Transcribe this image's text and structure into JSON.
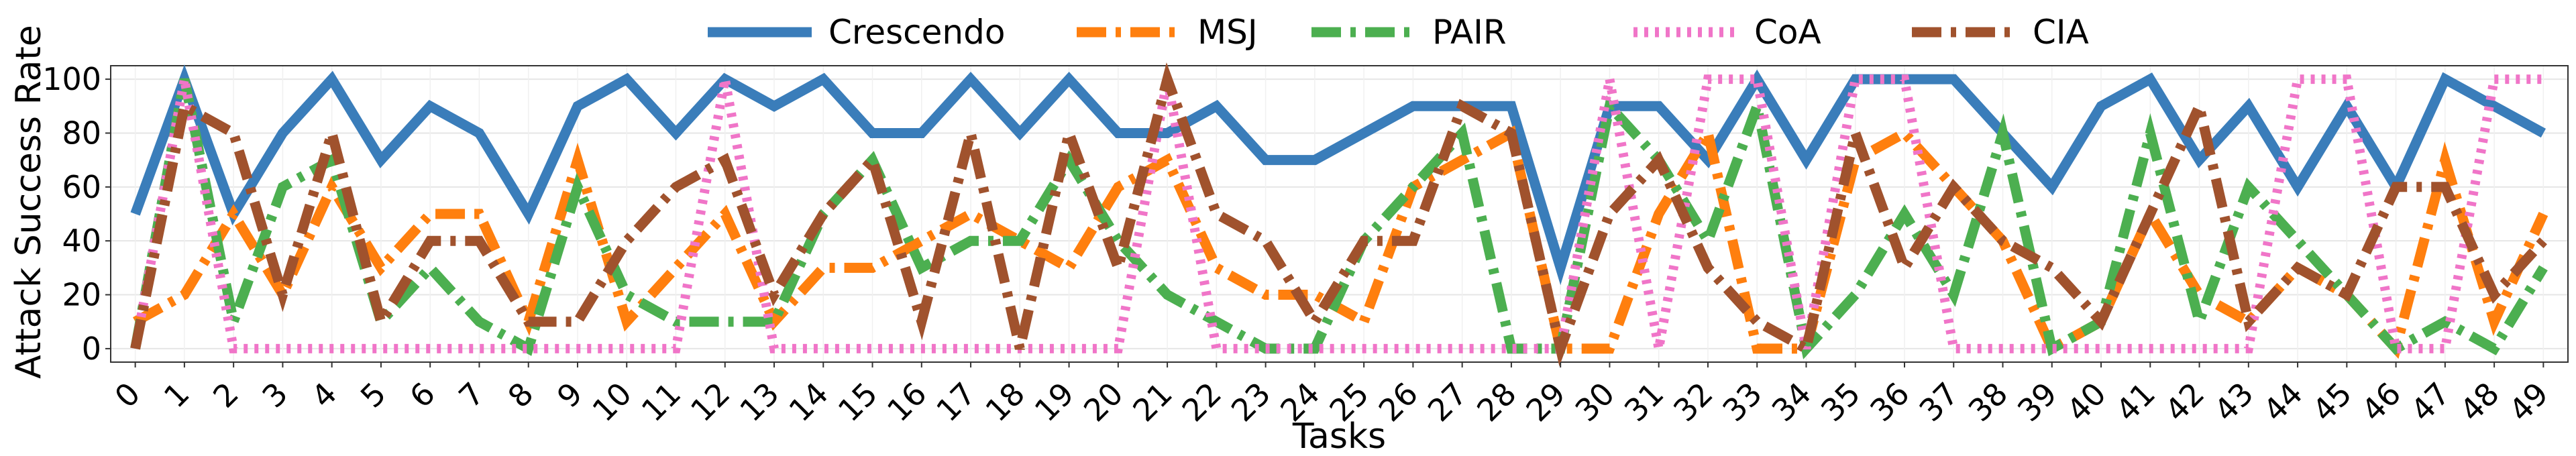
{
  "chart_data": {
    "type": "line",
    "xlabel": "Tasks",
    "ylabel": "Attack Success Rate",
    "xlim": [
      -0.5,
      49.5
    ],
    "ylim": [
      -5,
      105
    ],
    "yticks": [
      0,
      20,
      40,
      60,
      80,
      100
    ],
    "grid": true,
    "legend": "top-center, outside plot, single row",
    "categories": [
      "0",
      "1",
      "2",
      "3",
      "4",
      "5",
      "6",
      "7",
      "8",
      "9",
      "10",
      "11",
      "12",
      "13",
      "14",
      "15",
      "16",
      "17",
      "18",
      "19",
      "20",
      "21",
      "22",
      "23",
      "24",
      "25",
      "26",
      "27",
      "28",
      "29",
      "30",
      "31",
      "32",
      "33",
      "34",
      "35",
      "36",
      "37",
      "38",
      "39",
      "40",
      "41",
      "42",
      "43",
      "44",
      "45",
      "46",
      "47",
      "48",
      "49"
    ],
    "series": [
      {
        "name": "Crescendo",
        "color": "#3a7dba",
        "dash": "solid",
        "values": [
          50,
          100,
          50,
          80,
          100,
          70,
          90,
          80,
          50,
          90,
          100,
          80,
          100,
          90,
          100,
          80,
          80,
          100,
          80,
          100,
          80,
          80,
          90,
          70,
          70,
          80,
          90,
          90,
          90,
          30,
          90,
          90,
          70,
          100,
          70,
          100,
          100,
          100,
          80,
          60,
          90,
          100,
          70,
          90,
          60,
          90,
          60,
          100,
          90,
          80
        ]
      },
      {
        "name": "MSJ",
        "color": "#ff7f0e",
        "dash": "dashdot",
        "values": [
          10,
          20,
          50,
          20,
          60,
          30,
          50,
          50,
          10,
          70,
          10,
          30,
          50,
          10,
          30,
          30,
          40,
          50,
          40,
          30,
          60,
          70,
          30,
          20,
          20,
          10,
          60,
          70,
          80,
          0,
          0,
          50,
          80,
          0,
          0,
          70,
          80,
          60,
          40,
          0,
          10,
          50,
          20,
          10,
          30,
          20,
          0,
          70,
          10,
          50
        ]
      },
      {
        "name": "PAIR",
        "color": "#4caf50",
        "dash": "dashdot",
        "values": [
          0,
          100,
          10,
          60,
          70,
          10,
          30,
          10,
          0,
          60,
          20,
          10,
          10,
          10,
          50,
          70,
          30,
          40,
          40,
          70,
          40,
          20,
          10,
          0,
          0,
          40,
          60,
          80,
          0,
          0,
          90,
          70,
          40,
          90,
          0,
          20,
          50,
          20,
          80,
          0,
          10,
          80,
          10,
          60,
          40,
          20,
          0,
          10,
          0,
          30
        ]
      },
      {
        "name": "CoA",
        "color": "#f075c8",
        "dash": "dotted",
        "values": [
          0,
          100,
          0,
          0,
          0,
          0,
          0,
          0,
          0,
          0,
          0,
          0,
          100,
          0,
          0,
          0,
          0,
          0,
          0,
          0,
          0,
          100,
          0,
          0,
          0,
          0,
          0,
          0,
          0,
          0,
          100,
          0,
          100,
          100,
          0,
          100,
          100,
          0,
          0,
          0,
          0,
          0,
          0,
          0,
          100,
          100,
          0,
          0,
          100,
          100
        ]
      },
      {
        "name": "CIA",
        "color": "#a0522d",
        "dash": "dashdot",
        "values": [
          0,
          90,
          80,
          20,
          80,
          10,
          40,
          40,
          10,
          10,
          40,
          60,
          70,
          20,
          50,
          70,
          10,
          80,
          0,
          80,
          30,
          100,
          50,
          40,
          10,
          40,
          40,
          90,
          80,
          0,
          50,
          70,
          30,
          10,
          0,
          80,
          30,
          60,
          40,
          30,
          10,
          50,
          90,
          10,
          30,
          20,
          60,
          60,
          20,
          40
        ]
      }
    ]
  }
}
